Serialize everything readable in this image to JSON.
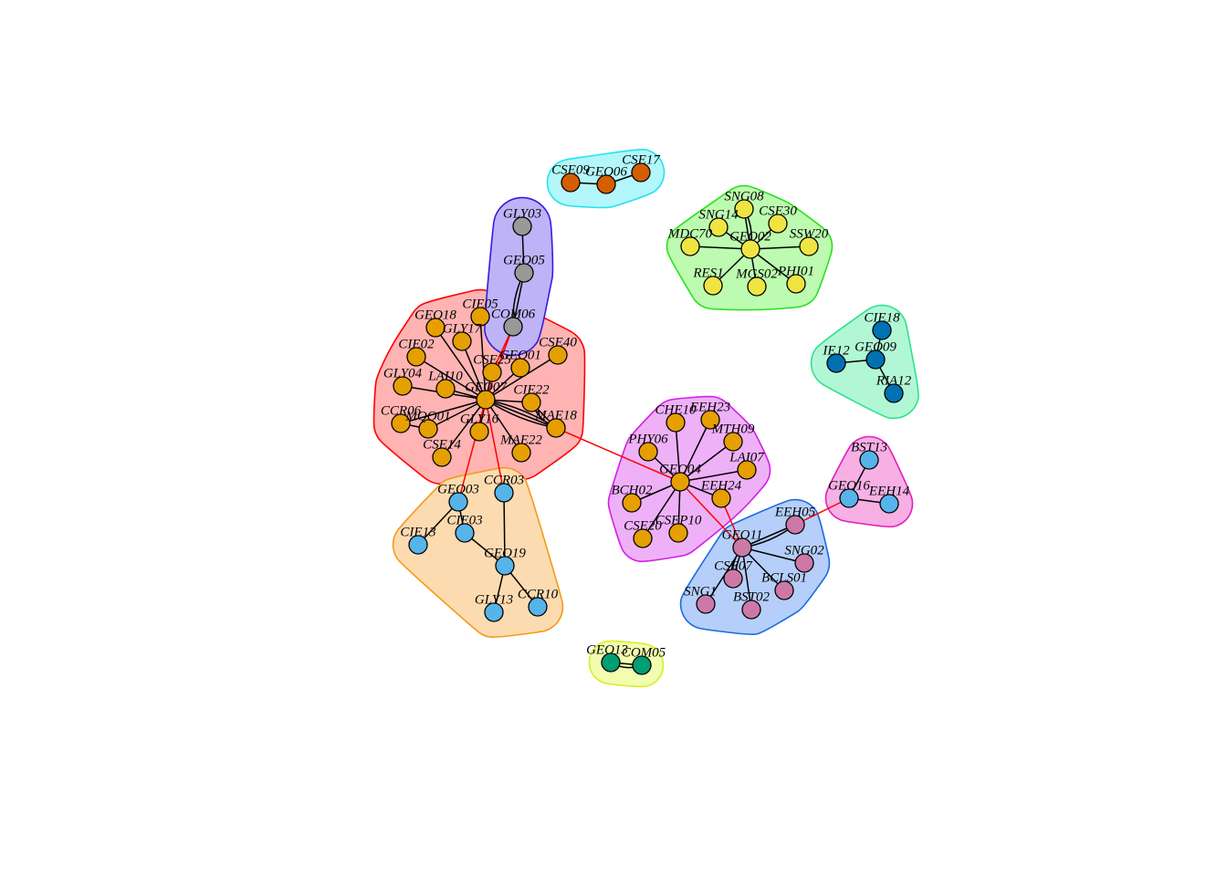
{
  "communities": [
    {
      "id": "c1",
      "fill": "#ffb3b3",
      "stroke": "#ff0000"
    },
    {
      "id": "c2",
      "fill": "#fddbb0",
      "stroke": "#f39a1a"
    },
    {
      "id": "c3",
      "fill": "#bfb3f7",
      "stroke": "#2f1fe0"
    },
    {
      "id": "c4",
      "fill": "#b3f7fa",
      "stroke": "#22e3ef"
    },
    {
      "id": "c5",
      "fill": "#bdfcb0",
      "stroke": "#2ae01c"
    },
    {
      "id": "c6",
      "fill": "#b2f7d5",
      "stroke": "#2de28c"
    },
    {
      "id": "c7",
      "fill": "#eeb1f7",
      "stroke": "#d21ee8"
    },
    {
      "id": "c8",
      "fill": "#f6b0e4",
      "stroke": "#e51ebc"
    },
    {
      "id": "c9",
      "fill": "#b5cffa",
      "stroke": "#1a6ce0"
    },
    {
      "id": "c10",
      "fill": "#f2fdb0",
      "stroke": "#d8ee22"
    }
  ],
  "node_colors": {
    "orange": "#e69f00",
    "sky": "#56b4e9",
    "gray": "#999999",
    "vermillion": "#d55e00",
    "yellow": "#f0e442",
    "blue": "#0072b2",
    "pink": "#cc79a7",
    "green": "#009e73"
  },
  "edge_colors": {
    "internal": "#000000",
    "between": "#ff0000"
  },
  "nodes": [
    {
      "id": "GEO07",
      "group": "orange",
      "community": "c1"
    },
    {
      "id": "GEO18",
      "group": "orange",
      "community": "c1"
    },
    {
      "id": "CIE05",
      "group": "orange",
      "community": "c1"
    },
    {
      "id": "GLY17",
      "group": "orange",
      "community": "c1"
    },
    {
      "id": "CIE02",
      "group": "orange",
      "community": "c1"
    },
    {
      "id": "CSE25",
      "group": "orange",
      "community": "c1"
    },
    {
      "id": "GEO01",
      "group": "orange",
      "community": "c1"
    },
    {
      "id": "CSE40",
      "group": "orange",
      "community": "c1"
    },
    {
      "id": "GLY04",
      "group": "orange",
      "community": "c1"
    },
    {
      "id": "LAI10",
      "group": "orange",
      "community": "c1"
    },
    {
      "id": "CIE22",
      "group": "orange",
      "community": "c1"
    },
    {
      "id": "CCR06",
      "group": "orange",
      "community": "c1"
    },
    {
      "id": "MQO01",
      "group": "orange",
      "community": "c1"
    },
    {
      "id": "GLY16",
      "group": "orange",
      "community": "c1"
    },
    {
      "id": "MAE18",
      "group": "orange",
      "community": "c1"
    },
    {
      "id": "CSE14",
      "group": "orange",
      "community": "c1"
    },
    {
      "id": "MAE22",
      "group": "orange",
      "community": "c1"
    },
    {
      "id": "GEO03",
      "group": "sky",
      "community": "c2"
    },
    {
      "id": "CCR03",
      "group": "sky",
      "community": "c2"
    },
    {
      "id": "CIE03",
      "group": "sky",
      "community": "c2"
    },
    {
      "id": "CIE13",
      "group": "sky",
      "community": "c2"
    },
    {
      "id": "GEO19",
      "group": "sky",
      "community": "c2"
    },
    {
      "id": "GLY13",
      "group": "sky",
      "community": "c2"
    },
    {
      "id": "CCR10",
      "group": "sky",
      "community": "c2"
    },
    {
      "id": "GLY03",
      "group": "gray",
      "community": "c3"
    },
    {
      "id": "GEO05",
      "group": "gray",
      "community": "c3"
    },
    {
      "id": "COM06",
      "group": "gray",
      "community": "c3"
    },
    {
      "id": "CSE09",
      "group": "vermillion",
      "community": "c4"
    },
    {
      "id": "GEO06",
      "group": "vermillion",
      "community": "c4"
    },
    {
      "id": "CSE17",
      "group": "vermillion",
      "community": "c4"
    },
    {
      "id": "SNG08",
      "group": "yellow",
      "community": "c5"
    },
    {
      "id": "SNG14",
      "group": "yellow",
      "community": "c5"
    },
    {
      "id": "CSE30",
      "group": "yellow",
      "community": "c5"
    },
    {
      "id": "MDC70",
      "group": "yellow",
      "community": "c5"
    },
    {
      "id": "GEO02",
      "group": "yellow",
      "community": "c5"
    },
    {
      "id": "SSW20",
      "group": "yellow",
      "community": "c5"
    },
    {
      "id": "RES1",
      "group": "yellow",
      "community": "c5"
    },
    {
      "id": "MGS02",
      "group": "yellow",
      "community": "c5"
    },
    {
      "id": "PHI01",
      "group": "yellow",
      "community": "c5"
    },
    {
      "id": "CIE18",
      "group": "blue",
      "community": "c6"
    },
    {
      "id": "IE12",
      "group": "blue",
      "community": "c6"
    },
    {
      "id": "GEO09",
      "group": "blue",
      "community": "c6"
    },
    {
      "id": "RIA12",
      "group": "blue",
      "community": "c6"
    },
    {
      "id": "CHE10",
      "group": "orange",
      "community": "c7"
    },
    {
      "id": "EEH23",
      "group": "orange",
      "community": "c7"
    },
    {
      "id": "MTH09",
      "group": "orange",
      "community": "c7"
    },
    {
      "id": "PHY06",
      "group": "orange",
      "community": "c7"
    },
    {
      "id": "LAI07",
      "group": "orange",
      "community": "c7"
    },
    {
      "id": "GEO04",
      "group": "orange",
      "community": "c7"
    },
    {
      "id": "EEH24",
      "group": "orange",
      "community": "c7"
    },
    {
      "id": "BCH02",
      "group": "orange",
      "community": "c7"
    },
    {
      "id": "CSE20",
      "group": "orange",
      "community": "c7"
    },
    {
      "id": "CSEP10",
      "group": "orange",
      "community": "c7"
    },
    {
      "id": "BST13",
      "group": "sky",
      "community": "c8"
    },
    {
      "id": "GEO16",
      "group": "sky",
      "community": "c8"
    },
    {
      "id": "EEH14",
      "group": "sky",
      "community": "c8"
    },
    {
      "id": "EEH05",
      "group": "pink",
      "community": "c9"
    },
    {
      "id": "GEO11",
      "group": "pink",
      "community": "c9"
    },
    {
      "id": "SNG02",
      "group": "pink",
      "community": "c9"
    },
    {
      "id": "CSE07",
      "group": "pink",
      "community": "c9"
    },
    {
      "id": "BCLS01",
      "group": "pink",
      "community": "c9"
    },
    {
      "id": "SNG1",
      "group": "pink",
      "community": "c9"
    },
    {
      "id": "BST02",
      "group": "pink",
      "community": "c9"
    },
    {
      "id": "GEO13",
      "group": "green",
      "community": "c10"
    },
    {
      "id": "COM05",
      "group": "green",
      "community": "c10"
    }
  ],
  "edges": [
    [
      "GEO07",
      "GEO18"
    ],
    [
      "GEO07",
      "CIE05"
    ],
    [
      "GEO07",
      "GLY17"
    ],
    [
      "GEO07",
      "CIE02"
    ],
    [
      "GEO07",
      "CSE25"
    ],
    [
      "GEO07",
      "GEO01"
    ],
    [
      "GEO07",
      "CSE40"
    ],
    [
      "GEO07",
      "GLY04"
    ],
    [
      "GEO07",
      "LAI10"
    ],
    [
      "GEO07",
      "CIE22"
    ],
    [
      "GEO07",
      "CCR06"
    ],
    [
      "GEO07",
      "MQO01"
    ],
    [
      "GEO07",
      "GLY16"
    ],
    [
      "GEO07",
      "MAE18"
    ],
    [
      "GEO07",
      "CSE14"
    ],
    [
      "GEO07",
      "MAE22"
    ],
    [
      "GEO07",
      "MAE18"
    ],
    [
      "GEO07",
      "MAE18"
    ],
    [
      "CIE22",
      "MAE18"
    ],
    [
      "CIE22",
      "MAE18"
    ],
    [
      "CCR06",
      "MQO01"
    ],
    [
      "GEO03",
      "CIE03"
    ],
    [
      "GEO03",
      "CIE13"
    ],
    [
      "CIE03",
      "GEO19"
    ],
    [
      "CCR03",
      "GEO19"
    ],
    [
      "GEO19",
      "GLY13"
    ],
    [
      "GEO19",
      "CCR10"
    ],
    [
      "GLY03",
      "GEO05"
    ],
    [
      "GEO05",
      "COM06"
    ],
    [
      "GEO05",
      "COM06"
    ],
    [
      "CSE09",
      "GEO06"
    ],
    [
      "GEO06",
      "CSE17"
    ],
    [
      "GEO02",
      "SNG08"
    ],
    [
      "GEO02",
      "SNG14"
    ],
    [
      "GEO02",
      "CSE30"
    ],
    [
      "GEO02",
      "MDC70"
    ],
    [
      "GEO02",
      "SSW20"
    ],
    [
      "GEO02",
      "RES1"
    ],
    [
      "GEO02",
      "MGS02"
    ],
    [
      "GEO02",
      "PHI01"
    ],
    [
      "GEO02",
      "SNG08"
    ],
    [
      "GEO09",
      "CIE18"
    ],
    [
      "GEO09",
      "IE12"
    ],
    [
      "GEO09",
      "RIA12"
    ],
    [
      "GEO04",
      "CHE10"
    ],
    [
      "GEO04",
      "EEH23"
    ],
    [
      "GEO04",
      "MTH09"
    ],
    [
      "GEO04",
      "PHY06"
    ],
    [
      "GEO04",
      "LAI07"
    ],
    [
      "GEO04",
      "EEH24"
    ],
    [
      "GEO04",
      "BCH02"
    ],
    [
      "GEO04",
      "CSE20"
    ],
    [
      "GEO04",
      "CSEP10"
    ],
    [
      "BST13",
      "GEO16"
    ],
    [
      "GEO16",
      "EEH14"
    ],
    [
      "GEO11",
      "EEH05"
    ],
    [
      "GEO11",
      "SNG02"
    ],
    [
      "GEO11",
      "CSE07"
    ],
    [
      "GEO11",
      "BCLS01"
    ],
    [
      "GEO11",
      "SNG1"
    ],
    [
      "GEO11",
      "BST02"
    ],
    [
      "GEO11",
      "EEH05"
    ],
    [
      "GEO11",
      "CSE07"
    ],
    [
      "GEO13",
      "COM05"
    ],
    [
      "GEO13",
      "COM05"
    ]
  ],
  "between_edges": [
    [
      "GEO07",
      "COM06"
    ],
    [
      "CSE25",
      "COM06"
    ],
    [
      "GEO07",
      "GEO03"
    ],
    [
      "GEO07",
      "CCR03"
    ],
    [
      "MAE18",
      "GEO04"
    ],
    [
      "GEO04",
      "GEO11"
    ],
    [
      "EEH24",
      "GEO11"
    ],
    [
      "EEH05",
      "GEO16"
    ]
  ]
}
